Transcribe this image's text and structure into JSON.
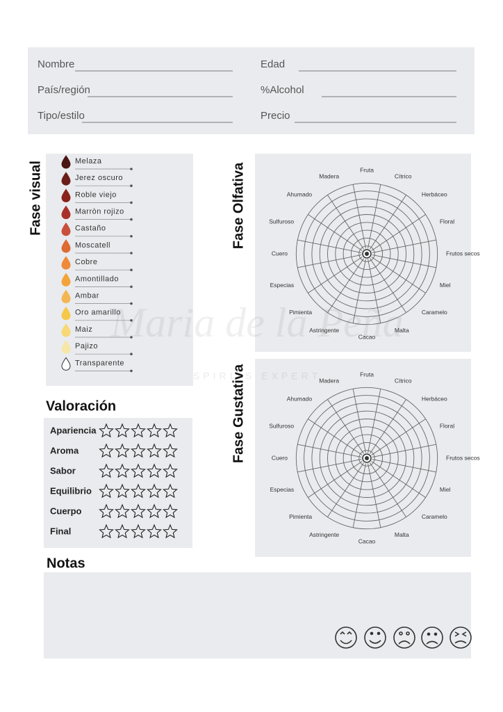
{
  "form": {
    "fields": [
      "Nombre",
      "Edad",
      "País/región",
      "%Alcohol",
      "Tipo/estilo",
      "Precio"
    ]
  },
  "visual": {
    "title": "Fase visual",
    "items": [
      {
        "label": "Melaza",
        "color": "#4a1512"
      },
      {
        "label": "Jerez oscuro",
        "color": "#6b1d17"
      },
      {
        "label": "Roble viejo",
        "color": "#8a221b"
      },
      {
        "label": "Marròn rojizo",
        "color": "#a8302a"
      },
      {
        "label": "Castaño",
        "color": "#c9503a"
      },
      {
        "label": "Moscatell",
        "color": "#de6a34"
      },
      {
        "label": "Cobre",
        "color": "#ef8a3a"
      },
      {
        "label": "Amontillado",
        "color": "#f3a33a"
      },
      {
        "label": "Ambar",
        "color": "#f3b652"
      },
      {
        "label": "Oro amarillo",
        "color": "#f6c84a"
      },
      {
        "label": "Maiz",
        "color": "#f7d874"
      },
      {
        "label": "Pajizo",
        "color": "#f8e6a8"
      },
      {
        "label": "Transparente",
        "color": "#ffffff"
      }
    ]
  },
  "olfativa": {
    "title": "Fase Olfativa",
    "labels": [
      "Fruta",
      "Cítrico",
      "Herbáceo",
      "Floral",
      "Frutos secos",
      "Miel",
      "Caramelo",
      "Malta",
      "Cacao",
      "Astringente",
      "Pimienta",
      "Especias",
      "Cuero",
      "Sulfuroso",
      "Ahumado",
      "Madera"
    ]
  },
  "gustativa": {
    "title": "Fase Gustativa",
    "labels": [
      "Fruta",
      "Cítrico",
      "Herbáceo",
      "Floral",
      "Frutos secos",
      "Miel",
      "Caramelo",
      "Malta",
      "Cacao",
      "Astringente",
      "Pimienta",
      "Especias",
      "Cuero",
      "Sulfuroso",
      "Ahumado",
      "Madera"
    ]
  },
  "valoracion": {
    "title": "Valoración",
    "rows": [
      "Apariencia",
      "Aroma",
      "Sabor",
      "Equilibrio",
      "Cuerpo",
      "Final"
    ]
  },
  "notas": {
    "title": "Notas"
  },
  "watermark": {
    "name": "Maria de la Peña",
    "tagline": "SPIRITS EXPERT"
  }
}
